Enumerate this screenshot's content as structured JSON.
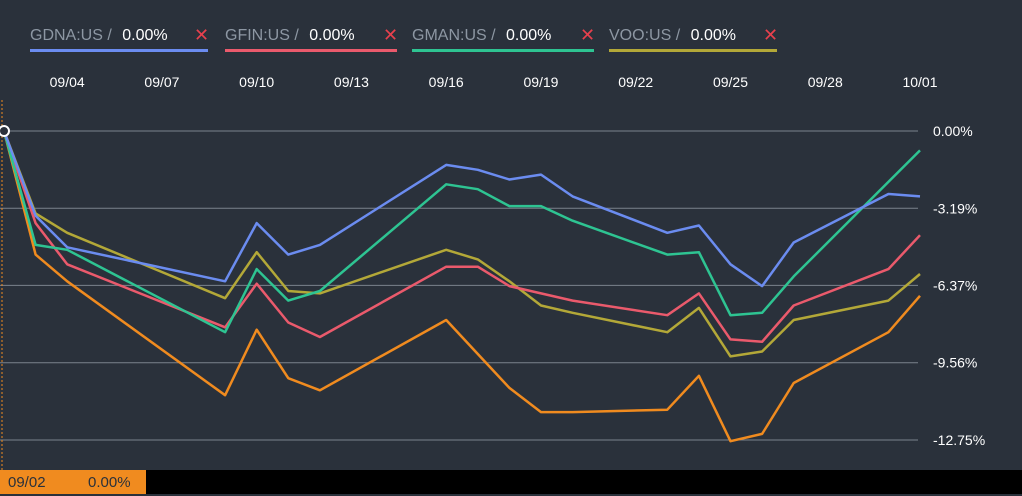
{
  "legend": [
    {
      "symbol": "GDNA:US",
      "separator": "/",
      "value": "0.00%",
      "remove": "✕",
      "color": "#6b8cf0"
    },
    {
      "symbol": "GFIN:US",
      "separator": "/",
      "value": "0.00%",
      "remove": "✕",
      "color": "#ea5a6c"
    },
    {
      "symbol": "GMAN:US",
      "separator": "/",
      "value": "0.00%",
      "remove": "✕",
      "color": "#2ec492"
    },
    {
      "symbol": "VOO:US",
      "separator": "/",
      "value": "0.00%",
      "remove": "✕",
      "color": "#b3a838"
    }
  ],
  "crosshair": {
    "date": "09/02",
    "value": "0.00%"
  },
  "chart_data": {
    "type": "line",
    "x_tick_labels": [
      "09/04",
      "09/07",
      "09/10",
      "09/13",
      "09/16",
      "09/19",
      "09/22",
      "09/25",
      "09/28",
      "10/01"
    ],
    "y_tick_labels": [
      "0.00%",
      "-3.19%",
      "-6.37%",
      "-9.56%",
      "-12.75%"
    ],
    "y_ticks": [
      0.0,
      -3.19,
      -6.37,
      -9.56,
      -12.75
    ],
    "xlim": [
      "09/02",
      "10/01"
    ],
    "ylim": [
      -13.2,
      0.2
    ],
    "grid": true,
    "x": [
      "09/02",
      "09/03",
      "09/04",
      "09/09",
      "09/10",
      "09/11",
      "09/12",
      "09/16",
      "09/17",
      "09/18",
      "09/19",
      "09/20",
      "09/23",
      "09/24",
      "09/25",
      "09/26",
      "09/27",
      "09/30",
      "10/01"
    ],
    "series": [
      {
        "name": "GDNA:US",
        "color": "#6b8cf0",
        "values": [
          0.0,
          -3.5,
          -4.8,
          -6.2,
          -3.8,
          -5.1,
          -4.7,
          -1.4,
          -1.6,
          -2.0,
          -1.8,
          -2.7,
          -4.2,
          -3.9,
          -5.5,
          -6.4,
          -4.6,
          -2.6,
          -2.7
        ]
      },
      {
        "name": "GFIN:US",
        "color": "#ea5a6c",
        "values": [
          0.0,
          -3.8,
          -5.5,
          -8.1,
          -6.3,
          -7.9,
          -8.5,
          -5.6,
          -5.6,
          -6.4,
          -6.7,
          -7.0,
          -7.6,
          -6.7,
          -8.6,
          -8.7,
          -7.2,
          -5.7,
          -4.3
        ]
      },
      {
        "name": "GMAN:US",
        "color": "#2ec492",
        "values": [
          0.0,
          -4.7,
          -4.9,
          -8.3,
          -5.7,
          -7.0,
          -6.6,
          -2.2,
          -2.4,
          -3.1,
          -3.1,
          -3.7,
          -5.1,
          -5.0,
          -7.6,
          -7.5,
          -6.0,
          -2.1,
          -0.8
        ]
      },
      {
        "name": "VOO:US",
        "color": "#b3a838",
        "values": [
          0.0,
          -3.4,
          -4.2,
          -6.9,
          -5.0,
          -6.6,
          -6.7,
          -4.9,
          -5.3,
          -6.2,
          -7.2,
          -7.5,
          -8.3,
          -7.3,
          -9.3,
          -9.1,
          -7.8,
          -7.0,
          -5.9
        ]
      },
      {
        "name": "",
        "color": "#f08b1f",
        "values": [
          0.0,
          -5.1,
          -6.2,
          -10.9,
          -8.2,
          -10.2,
          -10.7,
          -7.8,
          -9.2,
          -10.6,
          -11.6,
          -11.6,
          -11.5,
          -10.1,
          -12.8,
          -12.5,
          -10.4,
          -8.3,
          -6.8
        ]
      }
    ]
  }
}
